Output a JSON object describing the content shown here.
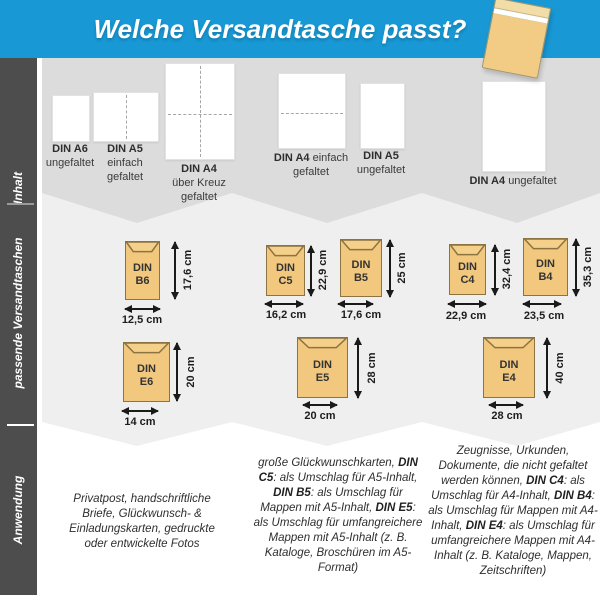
{
  "header": {
    "title": "Welche Versandtasche passt?"
  },
  "sidebar": {
    "sections": [
      "Inhalt",
      "passende Versandtaschen",
      "Anwendung"
    ]
  },
  "inhalt": {
    "items": [
      {
        "name": "DIN A6",
        "desc": "ungefaltet",
        "fold": "none"
      },
      {
        "name": "DIN A5",
        "desc": "einfach gefaltet",
        "fold": "vertical"
      },
      {
        "name": "DIN A4",
        "desc": "über Kreuz gefaltet",
        "fold": "cross"
      },
      {
        "name": "DIN A4",
        "desc": "einfach gefaltet",
        "fold": "horizontal"
      },
      {
        "name": "DIN A5",
        "desc": "ungefaltet",
        "fold": "none"
      },
      {
        "name": "DIN A4",
        "desc": "ungefaltet",
        "fold": "none"
      }
    ]
  },
  "envelopes": {
    "items": [
      {
        "line1": "DIN",
        "line2": "B6",
        "width_label": "12,5 cm",
        "height_label": "17,6 cm"
      },
      {
        "line1": "DIN",
        "line2": "C5",
        "width_label": "16,2 cm",
        "height_label": "22,9 cm"
      },
      {
        "line1": "DIN",
        "line2": "B5",
        "width_label": "17,6 cm",
        "height_label": "25 cm"
      },
      {
        "line1": "DIN",
        "line2": "C4",
        "width_label": "22,9 cm",
        "height_label": "32,4 cm"
      },
      {
        "line1": "DIN",
        "line2": "B4",
        "width_label": "23,5 cm",
        "height_label": "35,3 cm"
      },
      {
        "line1": "DIN",
        "line2": "E6",
        "width_label": "14 cm",
        "height_label": "20 cm"
      },
      {
        "line1": "DIN",
        "line2": "E5",
        "width_label": "20 cm",
        "height_label": "28 cm"
      },
      {
        "line1": "DIN",
        "line2": "E4",
        "width_label": "28 cm",
        "height_label": "40 cm"
      }
    ]
  },
  "anwendung": {
    "col1": [
      {
        "t": "Privatpost, handschriftliche Briefe, Glückwunsch- & Einladungskarten, gedruckte oder entwickelte Fotos"
      }
    ],
    "col2": [
      {
        "t": "große Glückwunschkarten, "
      },
      {
        "t": "DIN C5",
        "b": true
      },
      {
        "t": ": als Umschlag für A5-Inhalt, "
      },
      {
        "t": "DIN B5",
        "b": true
      },
      {
        "t": ": als Umschlag für Mappen mit A5-Inhalt, "
      },
      {
        "t": "DIN E5",
        "b": true
      },
      {
        "t": ": als Umschlag für umfangreichere Mappen mit A5-Inhalt (z. B. Kataloge, Broschüren im A5-Format)"
      }
    ],
    "col3": [
      {
        "t": "Zeugnisse, Urkunden, Dokumente, die nicht gefaltet werden können, "
      },
      {
        "t": "DIN C4",
        "b": true
      },
      {
        "t": ": als Umschlag für A4-Inhalt, "
      },
      {
        "t": "DIN B4",
        "b": true
      },
      {
        "t": ": als Umschlag für Mappen mit A4-Inhalt, "
      },
      {
        "t": "DIN E4",
        "b": true
      },
      {
        "t": ": als Umschlag für umfangreichere Mappen mit A4-Inhalt (z. B. Kataloge, Mappen, Zeitschriften)"
      }
    ]
  },
  "colors": {
    "header_bg": "#1899d6",
    "sidebar_bg": "#4d4d4d",
    "band_inhalt": "#dcdcdc",
    "band_envelopes": "#efefef",
    "envelope_fill": "#f2c87e",
    "envelope_border": "#8c7342"
  }
}
